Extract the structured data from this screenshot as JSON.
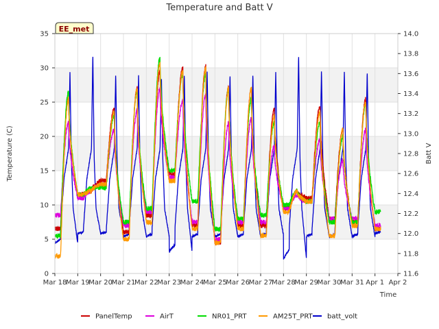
{
  "chart_data": {
    "type": "line",
    "title": "Temperature and Batt V",
    "badge": "EE_met",
    "xlabel": "Time",
    "ylabel": "Temperature (C)",
    "y2label": "Batt V",
    "ylim": [
      0,
      35
    ],
    "y2lim": [
      11.6,
      14.0
    ],
    "xlim": [
      0,
      15
    ],
    "x_ticks": [
      {
        "x": 0,
        "label": "Mar 18"
      },
      {
        "x": 1,
        "label": "Mar 19"
      },
      {
        "x": 2,
        "label": "Mar 20"
      },
      {
        "x": 3,
        "label": "Mar 21"
      },
      {
        "x": 4,
        "label": "Mar 22"
      },
      {
        "x": 5,
        "label": "Mar 23"
      },
      {
        "x": 6,
        "label": "Mar 24"
      },
      {
        "x": 7,
        "label": "Mar 25"
      },
      {
        "x": 8,
        "label": "Mar 26"
      },
      {
        "x": 9,
        "label": "Mar 27"
      },
      {
        "x": 10,
        "label": "Mar 28"
      },
      {
        "x": 11,
        "label": "Mar 29"
      },
      {
        "x": 12,
        "label": "Mar 30"
      },
      {
        "x": 13,
        "label": "Mar 31"
      },
      {
        "x": 14,
        "label": "Apr 1"
      },
      {
        "x": 15,
        "label": "Apr 2"
      }
    ],
    "y_ticks": [
      0,
      5,
      10,
      15,
      20,
      25,
      30,
      35
    ],
    "y2_ticks": [
      11.6,
      11.8,
      12.0,
      12.2,
      12.4,
      12.6,
      12.8,
      13.0,
      13.2,
      13.4,
      13.6,
      13.8,
      14.0
    ],
    "y2_tick_labels": [
      "11.6",
      "11.8",
      "12.0",
      "12.2",
      "12.4",
      "12.6",
      "12.8",
      "13.0",
      "13.2",
      "13.4",
      "13.6",
      "13.8",
      "14.0"
    ],
    "bands": [
      [
        5,
        10
      ],
      [
        15,
        20
      ],
      [
        25,
        30
      ]
    ],
    "series": [
      {
        "name": "PanelTemp",
        "color": "#cc0000",
        "axis": "left",
        "min": [
          6.5,
          11.5,
          13.5,
          6.0,
          8.5,
          14.5,
          7.0,
          4.5,
          7.0,
          7.0,
          9.5,
          11.0,
          8.0,
          7.5,
          6.5
        ],
        "max": [
          25.5,
          12.0,
          24.0,
          27.0,
          29.5,
          30.0,
          30.3,
          27.3,
          27.0,
          24.0,
          12.0,
          24.5,
          21.0,
          25.5
        ]
      },
      {
        "name": "AirT",
        "color": "#dd00dd",
        "axis": "left",
        "min": [
          8.5,
          11.0,
          13.0,
          7.0,
          9.0,
          14.0,
          7.5,
          5.0,
          7.5,
          7.5,
          9.5,
          10.5,
          8.0,
          8.0,
          7.0
        ],
        "max": [
          22.0,
          12.0,
          21.0,
          23.8,
          27.0,
          25.3,
          26.0,
          22.0,
          22.7,
          18.5,
          11.5,
          19.5,
          16.5,
          21.0
        ]
      },
      {
        "name": "NR01_PRT",
        "color": "#00dd00",
        "axis": "left",
        "min": [
          5.5,
          11.5,
          12.5,
          7.5,
          9.5,
          15.0,
          10.5,
          6.5,
          8.0,
          8.5,
          10.0,
          10.5,
          7.5,
          7.5,
          9.0
        ],
        "max": [
          26.5,
          12.5,
          23.0,
          26.5,
          31.5,
          29.0,
          29.0,
          27.0,
          25.5,
          22.0,
          12.0,
          22.0,
          20.0,
          24.8
        ]
      },
      {
        "name": "AM25T_PRT",
        "color": "#ff9900",
        "axis": "left",
        "min": [
          2.5,
          11.5,
          13.0,
          5.0,
          7.5,
          13.5,
          6.5,
          4.5,
          6.5,
          5.5,
          9.0,
          10.5,
          5.5,
          7.0,
          6.5
        ],
        "max": [
          25.5,
          12.0,
          23.5,
          27.0,
          30.7,
          29.5,
          30.0,
          27.0,
          27.0,
          23.0,
          12.0,
          23.5,
          21.0,
          25.0
        ]
      },
      {
        "name": "batt_volt",
        "color": "#0000cc",
        "axis": "right",
        "min": [
          11.9,
          12.0,
          12.0,
          11.97,
          11.97,
          11.82,
          11.97,
          11.97,
          11.97,
          11.98,
          11.75,
          11.97,
          11.97,
          11.97,
          12.0
        ],
        "max": [
          13.62,
          13.8,
          13.6,
          13.58,
          13.58,
          13.6,
          13.62,
          13.6,
          13.6,
          13.62,
          13.8,
          13.64,
          13.62,
          13.62
        ]
      }
    ],
    "legend": [
      "PanelTemp",
      "AirT",
      "NR01_PRT",
      "AM25T_PRT",
      "batt_volt"
    ],
    "legend_position": "bottom-center"
  }
}
